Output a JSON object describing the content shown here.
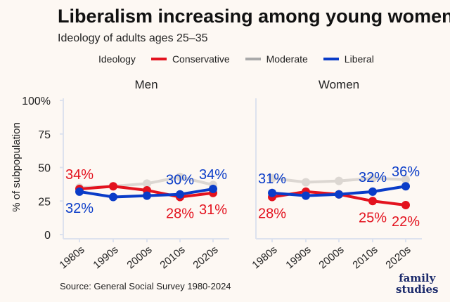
{
  "title": "Liberalism increasing among young women",
  "subtitle": "Ideology of adults ages 25–35",
  "legend": {
    "title": "Ideology",
    "items": [
      "Conservative",
      "Moderate",
      "Liberal"
    ]
  },
  "source": "Source: General Social Survey 1980-2024",
  "logo": "family studies",
  "colors": {
    "Conservative": "#e3121e",
    "Moderate": "#dcd7d2",
    "Liberal": "#0a3cc8"
  },
  "chart_data": [
    {
      "type": "line",
      "title": "Men",
      "ylabel": "% of subpopulation",
      "ylim": [
        0,
        100
      ],
      "yticks": [
        "0",
        "25",
        "50",
        "75",
        "100%"
      ],
      "categories": [
        "1980s",
        "1990s",
        "2000s",
        "2010s",
        "2020s"
      ],
      "series": [
        {
          "name": "Moderate",
          "values": [
            35,
            36,
            38,
            43,
            37
          ]
        },
        {
          "name": "Conservative",
          "values": [
            34,
            36,
            33,
            28,
            31
          ]
        },
        {
          "name": "Liberal",
          "values": [
            32,
            28,
            29,
            30,
            34
          ]
        }
      ],
      "labels": [
        {
          "series": "Conservative",
          "text": [
            "34%",
            "28%",
            "31%"
          ],
          "idx": [
            0,
            3,
            4
          ]
        },
        {
          "series": "Liberal",
          "text": [
            "32%",
            "30%",
            "34%"
          ],
          "idx": [
            0,
            3,
            4
          ]
        }
      ]
    },
    {
      "type": "line",
      "title": "Women",
      "ylim": [
        0,
        100
      ],
      "categories": [
        "1980s",
        "1990s",
        "2000s",
        "2010s",
        "2020s"
      ],
      "series": [
        {
          "name": "Moderate",
          "values": [
            42,
            39,
            40,
            42,
            41
          ]
        },
        {
          "name": "Conservative",
          "values": [
            28,
            32,
            30,
            25,
            22
          ]
        },
        {
          "name": "Liberal",
          "values": [
            31,
            29,
            30,
            32,
            36
          ]
        }
      ],
      "labels": [
        {
          "series": "Conservative",
          "text": [
            "28%",
            "25%",
            "22%"
          ],
          "idx": [
            0,
            3,
            4
          ]
        },
        {
          "series": "Liberal",
          "text": [
            "31%",
            "32%",
            "36%"
          ],
          "idx": [
            0,
            3,
            4
          ]
        }
      ]
    }
  ]
}
